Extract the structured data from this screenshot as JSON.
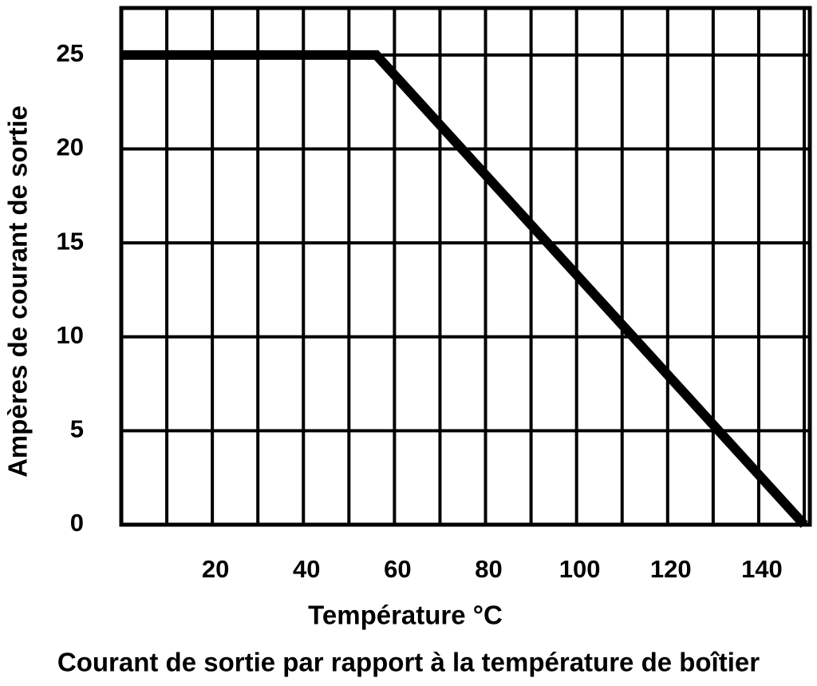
{
  "chart_data": {
    "type": "line",
    "title": "Courant de sortie par rapport à la température de boîtier",
    "x_label": "Température °C",
    "y_label": "Ampères de courant de sortie",
    "x": [
      0,
      56,
      150
    ],
    "series": [
      {
        "name": "Courant de sortie",
        "color": "#000000",
        "values": [
          25,
          25,
          0
        ]
      }
    ],
    "xlim": [
      0,
      150
    ],
    "xticks": [
      20,
      40,
      60,
      80,
      100,
      120,
      140
    ],
    "xminor": [
      10,
      30,
      50,
      70,
      90,
      110,
      130,
      150
    ],
    "ylim": [
      0,
      27.5
    ],
    "yticks": [
      0,
      5,
      10,
      15,
      20,
      25
    ],
    "grid": true
  }
}
